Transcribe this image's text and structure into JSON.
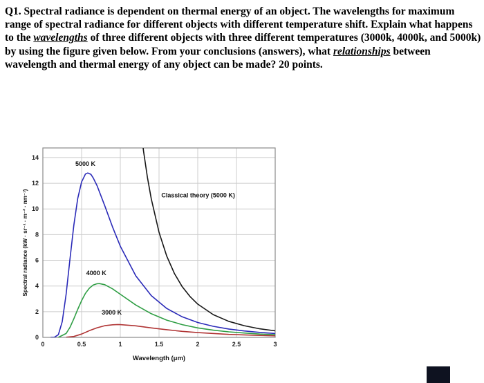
{
  "question": {
    "segments": [
      {
        "text": "Q1.  Spectral radiance is dependent on thermal energy of an object.  The wavelengths for maximum range of spectral radiance for different objects with different temperature shift. Explain what happens to the ",
        "em": false
      },
      {
        "text": "wavelengths",
        "em": true
      },
      {
        "text": " of three different objects with three different temperatures (3000k, 4000k, and 5000k) by using the figure given below.  From your conclusions (answers), what ",
        "em": true,
        "em_override": false
      },
      {
        "text": "relationships",
        "em": true
      },
      {
        "text": " between wavelength and thermal energy of any object can be made? 20 points.",
        "em": false
      }
    ]
  },
  "chart_data": {
    "type": "line",
    "title": "",
    "xlabel": "Wavelength (μm)",
    "ylabel": "Spectral radiance (kW · sr⁻¹ · m⁻² · nm⁻¹)",
    "xlim": [
      0,
      3
    ],
    "ylim": [
      0,
      14.75
    ],
    "grid": true,
    "grid_color": "#cccccc",
    "border_color": "#8a8a8a",
    "xticks": {
      "values": [
        0,
        0.5,
        1,
        1.5,
        2,
        2.5,
        3
      ],
      "labels": [
        "0",
        "0.5",
        "1",
        "1.5",
        "2",
        "2.5",
        "3"
      ]
    },
    "yticks": {
      "values": [
        0,
        2,
        4,
        6,
        8,
        10,
        12,
        14
      ],
      "labels": [
        "0",
        "2",
        "4",
        "6",
        "8",
        "10",
        "12",
        "14"
      ]
    },
    "series": [
      {
        "name": "5000 K",
        "label": "5000 K",
        "color": "#2a2ab8",
        "label_at": [
          0.42,
          13.35
        ],
        "points": [
          [
            0.1,
            0
          ],
          [
            0.15,
            0.01
          ],
          [
            0.2,
            0.21
          ],
          [
            0.25,
            1.22
          ],
          [
            0.3,
            3.35
          ],
          [
            0.35,
            6.1
          ],
          [
            0.4,
            8.74
          ],
          [
            0.45,
            10.81
          ],
          [
            0.5,
            12.1
          ],
          [
            0.55,
            12.72
          ],
          [
            0.58,
            12.8
          ],
          [
            0.62,
            12.7
          ],
          [
            0.65,
            12.42
          ],
          [
            0.7,
            11.81
          ],
          [
            0.8,
            10.24
          ],
          [
            0.9,
            8.59
          ],
          [
            1.0,
            7.1
          ],
          [
            1.2,
            4.79
          ],
          [
            1.4,
            3.25
          ],
          [
            1.6,
            2.25
          ],
          [
            1.8,
            1.6
          ],
          [
            2.0,
            1.16
          ],
          [
            2.2,
            0.86
          ],
          [
            2.4,
            0.65
          ],
          [
            2.6,
            0.5
          ],
          [
            2.8,
            0.39
          ],
          [
            3.0,
            0.3
          ]
        ]
      },
      {
        "name": "Classical theory (5000 K)",
        "label": "Classical theory (5000 K)",
        "color": "#161616",
        "label_at": [
          1.53,
          10.9
        ],
        "points": [
          [
            0.95,
            50.8
          ],
          [
            1.0,
            41.4
          ],
          [
            1.05,
            34.1
          ],
          [
            1.1,
            28.3
          ],
          [
            1.15,
            23.7
          ],
          [
            1.2,
            19.97
          ],
          [
            1.25,
            16.96
          ],
          [
            1.3,
            14.5
          ],
          [
            1.35,
            12.46
          ],
          [
            1.4,
            10.78
          ],
          [
            1.5,
            8.18
          ],
          [
            1.6,
            6.32
          ],
          [
            1.7,
            4.96
          ],
          [
            1.8,
            3.94
          ],
          [
            1.9,
            3.18
          ],
          [
            2.0,
            2.59
          ],
          [
            2.2,
            1.77
          ],
          [
            2.4,
            1.25
          ],
          [
            2.6,
            0.91
          ],
          [
            2.8,
            0.67
          ],
          [
            3.0,
            0.51
          ]
        ]
      },
      {
        "name": "4000 K",
        "label": "4000 K",
        "color": "#2f9e44",
        "label_at": [
          0.56,
          4.85
        ],
        "points": [
          [
            0.2,
            0
          ],
          [
            0.3,
            0.3
          ],
          [
            0.35,
            0.78
          ],
          [
            0.4,
            1.45
          ],
          [
            0.45,
            2.18
          ],
          [
            0.5,
            2.86
          ],
          [
            0.55,
            3.43
          ],
          [
            0.6,
            3.83
          ],
          [
            0.65,
            4.08
          ],
          [
            0.7,
            4.18
          ],
          [
            0.73,
            4.19
          ],
          [
            0.8,
            4.1
          ],
          [
            0.9,
            3.78
          ],
          [
            1.0,
            3.36
          ],
          [
            1.2,
            2.52
          ],
          [
            1.4,
            1.84
          ],
          [
            1.6,
            1.34
          ],
          [
            1.8,
            0.99
          ],
          [
            2.0,
            0.74
          ],
          [
            2.2,
            0.56
          ],
          [
            2.4,
            0.43
          ],
          [
            2.6,
            0.34
          ],
          [
            2.8,
            0.26
          ],
          [
            3.0,
            0.21
          ]
        ]
      },
      {
        "name": "3000 K",
        "label": "3000 K",
        "color": "#b03434",
        "label_at": [
          0.76,
          1.78
        ],
        "points": [
          [
            0.3,
            0.01
          ],
          [
            0.4,
            0.07
          ],
          [
            0.5,
            0.26
          ],
          [
            0.6,
            0.52
          ],
          [
            0.7,
            0.75
          ],
          [
            0.8,
            0.91
          ],
          [
            0.9,
            0.98
          ],
          [
            0.97,
            1.0
          ],
          [
            1.0,
            0.99
          ],
          [
            1.2,
            0.9
          ],
          [
            1.4,
            0.74
          ],
          [
            1.6,
            0.6
          ],
          [
            1.8,
            0.47
          ],
          [
            2.0,
            0.37
          ],
          [
            2.4,
            0.23
          ],
          [
            2.8,
            0.15
          ],
          [
            3.0,
            0.12
          ]
        ]
      }
    ]
  },
  "artifact": {
    "color": "#0e1220"
  }
}
